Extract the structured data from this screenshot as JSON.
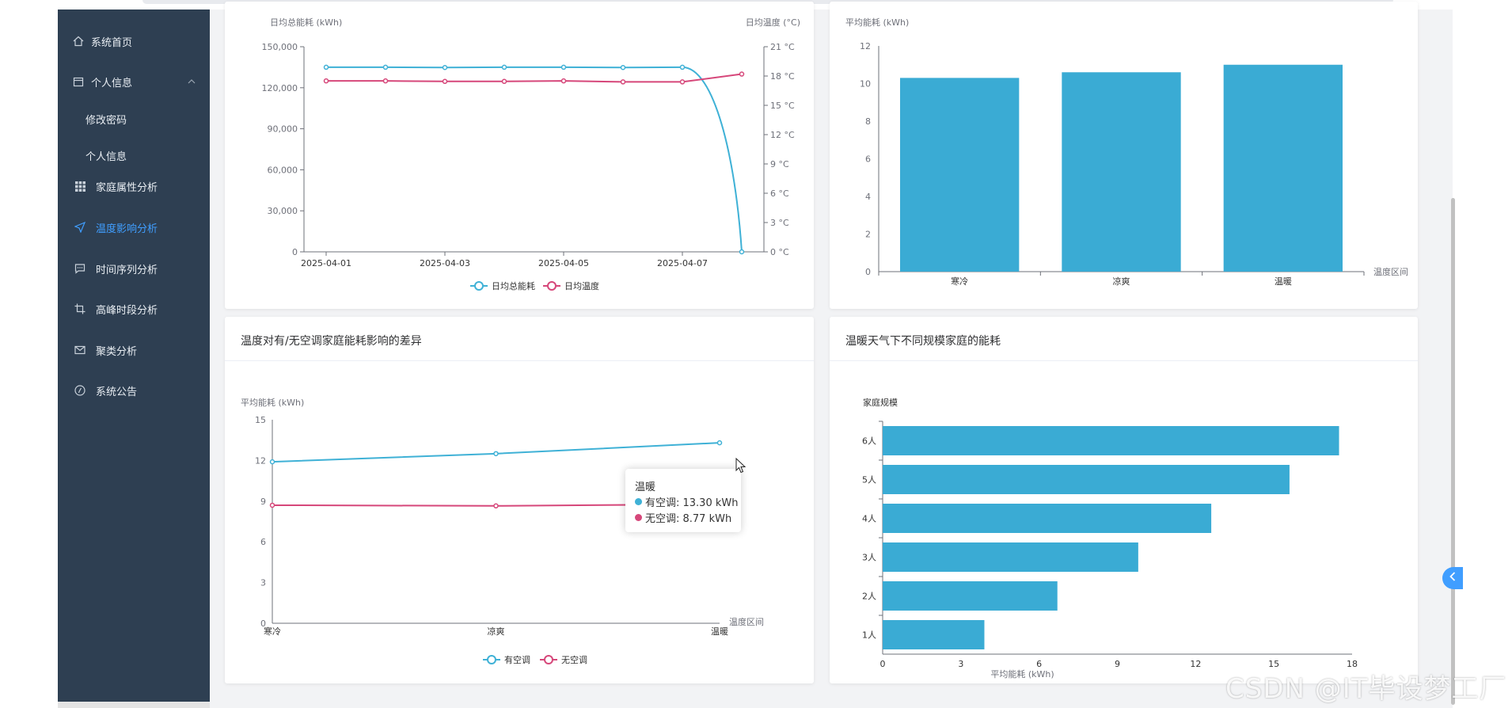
{
  "sidebar": {
    "items": [
      {
        "label": "系统首页",
        "icon": "home-icon"
      },
      {
        "label": "个人信息",
        "icon": "calendar-icon"
      },
      {
        "label": "修改密码"
      },
      {
        "label": "个人信息"
      },
      {
        "label": "家庭属性分析",
        "icon": "grid-icon"
      },
      {
        "label": "温度影响分析",
        "icon": "send-icon"
      },
      {
        "label": "时间序列分析",
        "icon": "chat-icon"
      },
      {
        "label": "高峰时段分析",
        "icon": "crop-icon"
      },
      {
        "label": "聚类分析",
        "icon": "mail-icon"
      },
      {
        "label": "系统公告",
        "icon": "compass-icon"
      }
    ],
    "active_color": "#409eff"
  },
  "cards": {
    "ac_diff_title": "温度对有/无空调家庭能耗影响的差异",
    "size_title": "温暖天气下不同规模家庭的能耗"
  },
  "tooltip": {
    "title": "温暖",
    "row1": "有空调: 13.30 kWh",
    "row2": "无空调: 8.77 kWh"
  },
  "watermark": "CSDN @IT毕设梦工厂",
  "chart_data": [
    {
      "type": "line",
      "x": [
        "2025-04-01",
        "2025-04-02",
        "2025-04-03",
        "2025-04-04",
        "2025-04-05",
        "2025-04-06",
        "2025-04-07",
        "2025-04-08"
      ],
      "xticks": [
        "2025-04-01",
        "2025-04-03",
        "2025-04-05",
        "2025-04-07"
      ],
      "ylabel_left": "日均总能耗 (kWh)",
      "ylabel_right": "日均温度 (°C)",
      "ylim_left": [
        0,
        150000
      ],
      "yticks_left": [
        "0",
        "30,000",
        "60,000",
        "90,000",
        "120,000",
        "150,000"
      ],
      "ylim_right": [
        0,
        21
      ],
      "yticks_right": [
        "0 °C",
        "3 °C",
        "6 °C",
        "9 °C",
        "12 °C",
        "15 °C",
        "18 °C",
        "21 °C"
      ],
      "series": [
        {
          "name": "日均总能耗",
          "axis": "left",
          "color": "#3fb1d6",
          "values": [
            135000,
            135000,
            134800,
            135000,
            135000,
            134800,
            135000,
            0
          ]
        },
        {
          "name": "日均温度",
          "axis": "right",
          "color": "#d6477a",
          "values": [
            17.5,
            17.5,
            17.45,
            17.45,
            17.5,
            17.4,
            17.4,
            18.2
          ]
        }
      ],
      "legend": "bottom-center"
    },
    {
      "type": "bar",
      "categories": [
        "寒冷",
        "凉爽",
        "温暖"
      ],
      "values": [
        10.3,
        10.6,
        11.0
      ],
      "ylabel": "平均能耗 (kWh)",
      "xlabel": "温度区间",
      "ylim": [
        0,
        12
      ],
      "yticks": [
        "0",
        "2",
        "4",
        "6",
        "8",
        "10",
        "12"
      ],
      "color": "#3aabd4"
    },
    {
      "type": "line",
      "categories": [
        "寒冷",
        "凉爽",
        "温暖"
      ],
      "ylabel": "平均能耗 (kWh)",
      "xlabel": "温度区间",
      "ylim": [
        0,
        15
      ],
      "yticks": [
        "0",
        "3",
        "6",
        "9",
        "12",
        "15"
      ],
      "series": [
        {
          "name": "有空调",
          "color": "#3fb1d6",
          "values": [
            11.9,
            12.5,
            13.3
          ]
        },
        {
          "name": "无空调",
          "color": "#d6477a",
          "values": [
            8.7,
            8.65,
            8.77
          ]
        }
      ],
      "legend": "bottom-center"
    },
    {
      "type": "bar",
      "orientation": "horizontal",
      "categories": [
        "1人",
        "2人",
        "3人",
        "4人",
        "5人",
        "6人"
      ],
      "values": [
        3.9,
        6.7,
        9.8,
        12.6,
        15.6,
        17.5
      ],
      "ylabel": "家庭规模",
      "xlabel": "平均能耗 (kWh)",
      "xlim": [
        0,
        18
      ],
      "xticks": [
        "0",
        "3",
        "6",
        "9",
        "12",
        "15",
        "18"
      ],
      "color": "#3aabd4"
    }
  ]
}
